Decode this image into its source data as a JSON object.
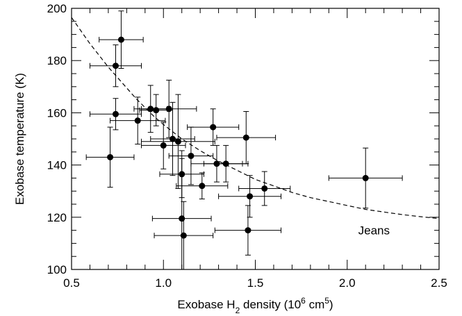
{
  "chart_data": {
    "type": "scatter",
    "xlabel": {
      "prefix": "Exobase H",
      "sub": "2",
      "middle": " density (10",
      "sup1": "6",
      "unit": " cm",
      "sup2": "5",
      "suffix": ")"
    },
    "ylabel": "Exobase temperature (K)",
    "xlim": [
      0.5,
      2.5
    ],
    "ylim": [
      100,
      200
    ],
    "x_ticks": [
      {
        "value": 0.5,
        "label": "0.5"
      },
      {
        "value": 1.0,
        "label": "1.0"
      },
      {
        "value": 1.5,
        "label": "1.5"
      },
      {
        "value": 2.0,
        "label": "2.0"
      },
      {
        "value": 2.5,
        "label": "2.5"
      }
    ],
    "y_ticks": [
      {
        "value": 100,
        "label": "100"
      },
      {
        "value": 120,
        "label": "120"
      },
      {
        "value": 140,
        "label": "140"
      },
      {
        "value": 160,
        "label": "160"
      },
      {
        "value": 180,
        "label": "180"
      },
      {
        "value": 200,
        "label": "200"
      }
    ],
    "x_minor_step": 0.1,
    "y_minor_step": 5,
    "grid": false,
    "points": [
      {
        "x": 0.77,
        "y": 188,
        "xerr": 0.12,
        "yerr": 11
      },
      {
        "x": 0.74,
        "y": 178,
        "xerr": 0.14,
        "yerr": 8
      },
      {
        "x": 0.74,
        "y": 159.5,
        "xerr": 0.14,
        "yerr": 6
      },
      {
        "x": 0.71,
        "y": 143,
        "xerr": 0.13,
        "yerr": 11.5
      },
      {
        "x": 0.86,
        "y": 157,
        "xerr": 0.15,
        "yerr": 9
      },
      {
        "x": 0.93,
        "y": 161.5,
        "xerr": 0.09,
        "yerr": 9
      },
      {
        "x": 0.96,
        "y": 161,
        "xerr": 0.09,
        "yerr": 6
      },
      {
        "x": 1.03,
        "y": 161.5,
        "xerr": 0.15,
        "yerr": 11
      },
      {
        "x": 1.0,
        "y": 147.5,
        "xerr": 0.12,
        "yerr": 9
      },
      {
        "x": 1.05,
        "y": 150,
        "xerr": 0.12,
        "yerr": 14
      },
      {
        "x": 1.08,
        "y": 149,
        "xerr": 0.2,
        "yerr": 18
      },
      {
        "x": 1.1,
        "y": 136.5,
        "xerr": 0.12,
        "yerr": 9
      },
      {
        "x": 1.15,
        "y": 143.5,
        "xerr": 0.12,
        "yerr": 11
      },
      {
        "x": 1.1,
        "y": 119.5,
        "xerr": 0.16,
        "yerr": 23
      },
      {
        "x": 1.11,
        "y": 113,
        "xerr": 0.16,
        "yerr": 13
      },
      {
        "x": 1.21,
        "y": 132,
        "xerr": 0.14,
        "yerr": 5
      },
      {
        "x": 1.27,
        "y": 154.5,
        "xerr": 0.14,
        "yerr": 7
      },
      {
        "x": 1.29,
        "y": 140.5,
        "xerr": 0.14,
        "yerr": 7
      },
      {
        "x": 1.34,
        "y": 140.5,
        "xerr": 0.12,
        "yerr": 7
      },
      {
        "x": 1.45,
        "y": 150.5,
        "xerr": 0.16,
        "yerr": 10
      },
      {
        "x": 1.47,
        "y": 128,
        "xerr": 0.17,
        "yerr": 8
      },
      {
        "x": 1.46,
        "y": 115,
        "xerr": 0.18,
        "yerr": 9.5
      },
      {
        "x": 1.55,
        "y": 131,
        "xerr": 0.14,
        "yerr": 6.5
      },
      {
        "x": 2.1,
        "y": 135,
        "xerr": 0.2,
        "yerr": 11.5
      }
    ],
    "curve": {
      "name": "Jeans",
      "style": "dashed",
      "x": [
        0.5,
        0.55,
        0.6,
        0.65,
        0.7,
        0.75,
        0.8,
        0.85,
        0.9,
        0.95,
        1.0,
        1.1,
        1.2,
        1.3,
        1.4,
        1.5,
        1.6,
        1.7,
        1.8,
        1.9,
        2.0,
        2.1,
        2.2,
        2.3,
        2.4,
        2.5
      ],
      "y": [
        196.5,
        191.5,
        186.5,
        182,
        177.5,
        173.5,
        169.5,
        165.5,
        162,
        158.5,
        155.5,
        150,
        145.5,
        141.5,
        138,
        134.5,
        132,
        129.5,
        127.5,
        126,
        124.5,
        123,
        122,
        121,
        120.2,
        119.5
      ]
    },
    "annotation": {
      "text": "Jeans",
      "x": 2.06,
      "y": 115
    }
  }
}
